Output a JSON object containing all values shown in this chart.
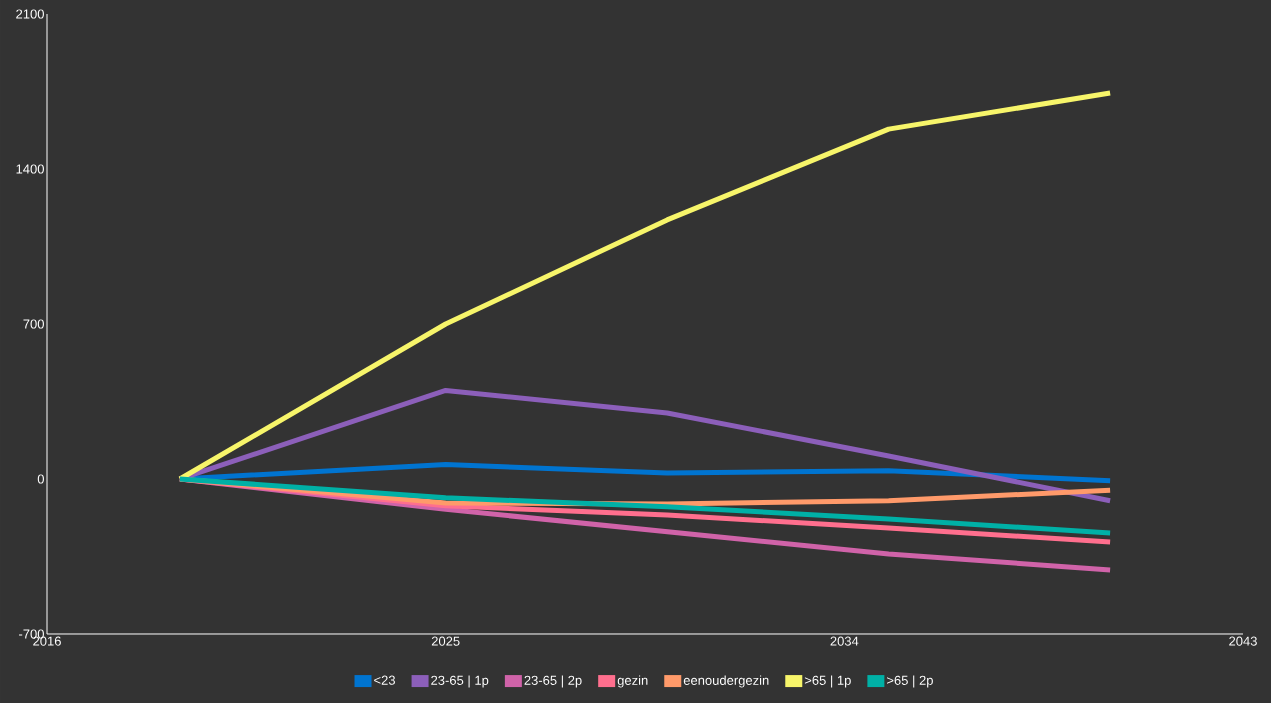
{
  "chart_data": {
    "type": "line",
    "x": [
      2019,
      2025,
      2030,
      2035,
      2040
    ],
    "series": [
      {
        "name": "<23",
        "color": "#0074d0",
        "values": [
          0,
          65,
          27,
          37,
          -8
        ]
      },
      {
        "name": "23-65 | 1p",
        "color": "#8c5fba",
        "values": [
          0,
          400,
          298,
          104,
          -98
        ]
      },
      {
        "name": "23-65 | 2p",
        "color": "#d063a9",
        "values": [
          0,
          -137,
          -238,
          -339,
          -411
        ]
      },
      {
        "name": "gezin",
        "color": "#ff6f8e",
        "values": [
          0,
          -121,
          -163,
          -221,
          -285
        ]
      },
      {
        "name": "eenoudergezin",
        "color": "#ff9a6a",
        "values": [
          0,
          -108,
          -113,
          -98,
          -51
        ]
      },
      {
        "name": ">65 | 1p",
        "color": "#f7f56a",
        "values": [
          0,
          700,
          1170,
          1580,
          1743
        ]
      },
      {
        "name": ">65 | 2p",
        "color": "#00b0a6",
        "values": [
          0,
          -85,
          -125,
          -181,
          -244
        ]
      }
    ],
    "xlim": [
      2016,
      2043
    ],
    "xticks": [
      2016,
      2025,
      2034,
      2043
    ],
    "ylim": [
      -700,
      2100
    ],
    "yticks": [
      -700,
      0,
      700,
      1400,
      2100
    ],
    "grid": false,
    "legend": "bottom",
    "marker": "none",
    "line_style": "solid"
  }
}
